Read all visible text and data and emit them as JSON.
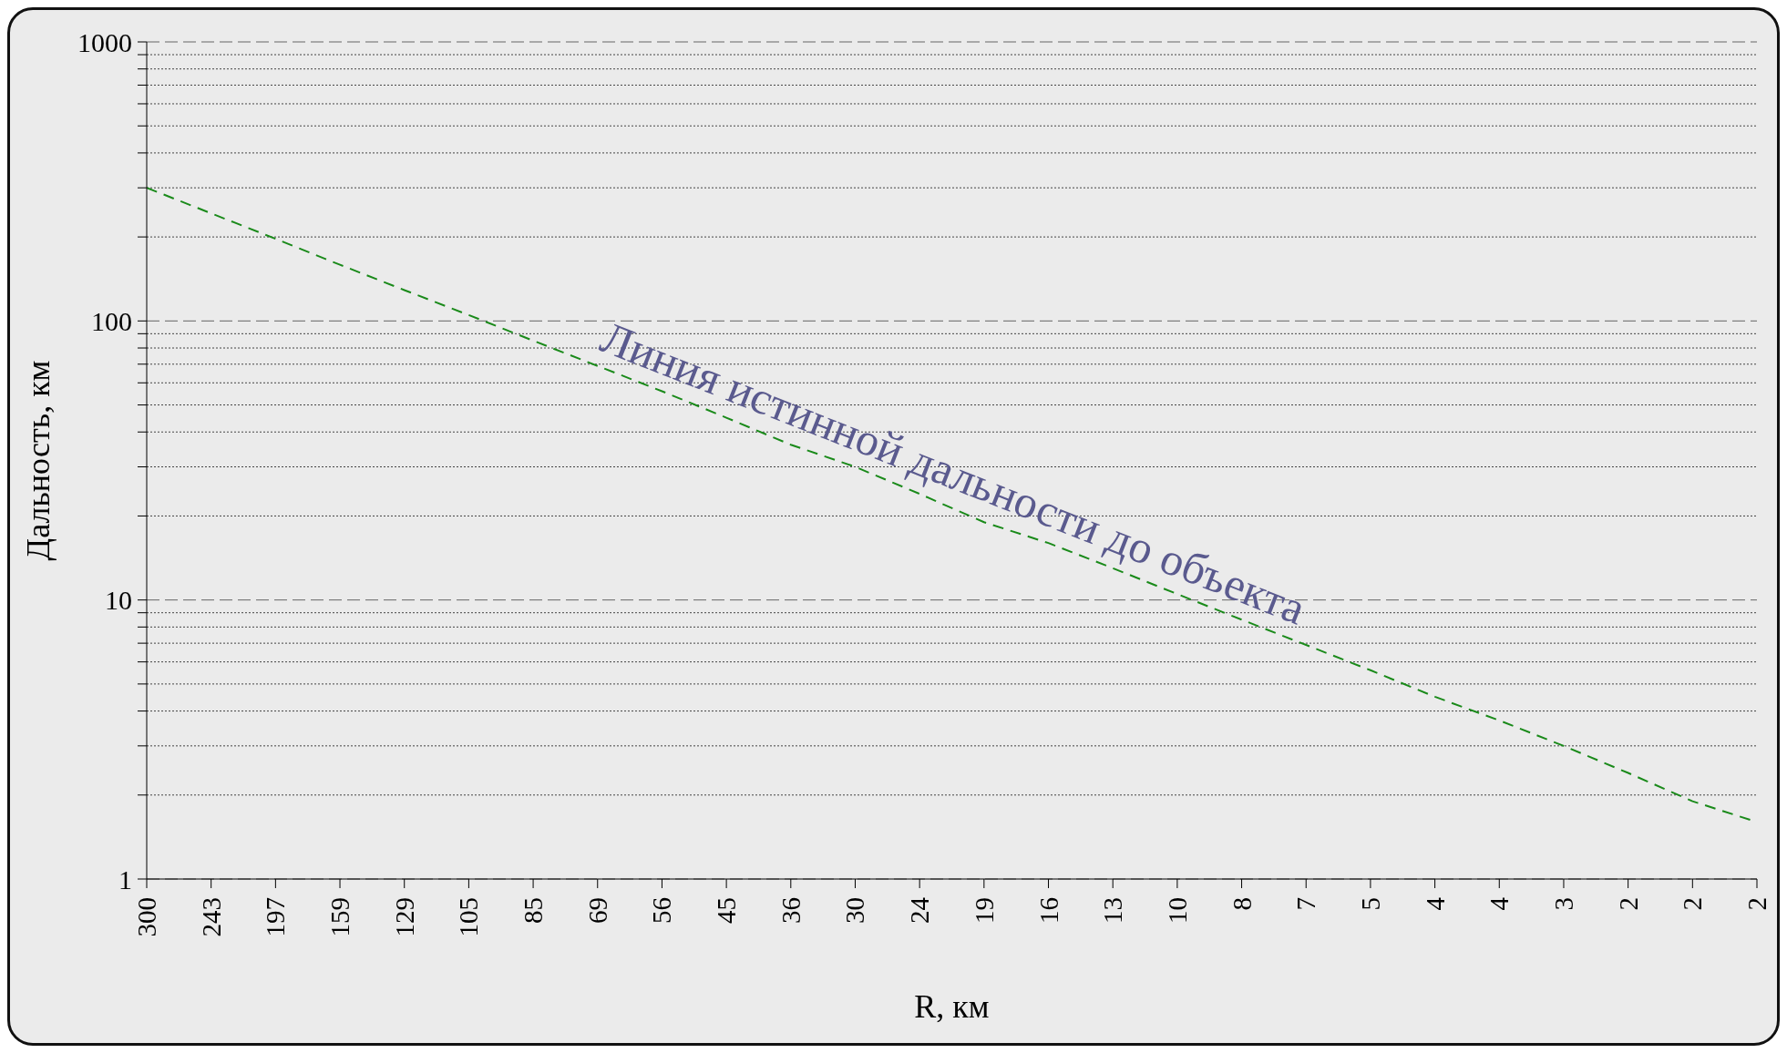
{
  "chart_data": {
    "type": "line",
    "xlabel": "R, км",
    "ylabel": "Дальность, км",
    "categories": [
      "300",
      "243",
      "197",
      "159",
      "129",
      "105",
      "85",
      "69",
      "56",
      "45",
      "36",
      "30",
      "24",
      "19",
      "16",
      "13",
      "10",
      "8",
      "7",
      "5",
      "4",
      "4",
      "3",
      "2",
      "2",
      "2"
    ],
    "series": [
      {
        "color": "#1a8a1a",
        "values": [
          300,
          243,
          197,
          159,
          129,
          105,
          85,
          69,
          56,
          45,
          36,
          30,
          24,
          19,
          16,
          13,
          10.5,
          8.5,
          6.9,
          5.6,
          4.5,
          3.7,
          3.0,
          2.4,
          1.9,
          1.6
        ]
      }
    ],
    "log": "y",
    "ylim": [
      1,
      1000
    ],
    "yticks": [
      1,
      {
        "value": 2,
        "label": null
      },
      {
        "value": 3,
        "label": null
      },
      {
        "value": 4,
        "label": null
      },
      {
        "value": 5,
        "label": null
      },
      {
        "value": 6,
        "label": null
      },
      {
        "value": 7,
        "label": null
      },
      {
        "value": 8,
        "label": null
      },
      {
        "value": 9,
        "label": null
      },
      10,
      {
        "value": 20,
        "label": null
      },
      {
        "value": 30,
        "label": null
      },
      {
        "value": 40,
        "label": null
      },
      {
        "value": 50,
        "label": null
      },
      {
        "value": 60,
        "label": null
      },
      {
        "value": 70,
        "label": null
      },
      {
        "value": 80,
        "label": null
      },
      {
        "value": 90,
        "label": null
      },
      100,
      {
        "value": 200,
        "label": null
      },
      {
        "value": 300,
        "label": null
      },
      {
        "value": 400,
        "label": null
      },
      {
        "value": 500,
        "label": null
      },
      {
        "value": 600,
        "label": null
      },
      {
        "value": 700,
        "label": null
      },
      {
        "value": 800,
        "label": null
      },
      {
        "value": 900,
        "label": null
      },
      1000
    ],
    "grid": "y",
    "marker": "none",
    "line_style": "dashed",
    "legend": false,
    "annotations": [
      "Линия истинной дальности до объекта"
    ]
  }
}
